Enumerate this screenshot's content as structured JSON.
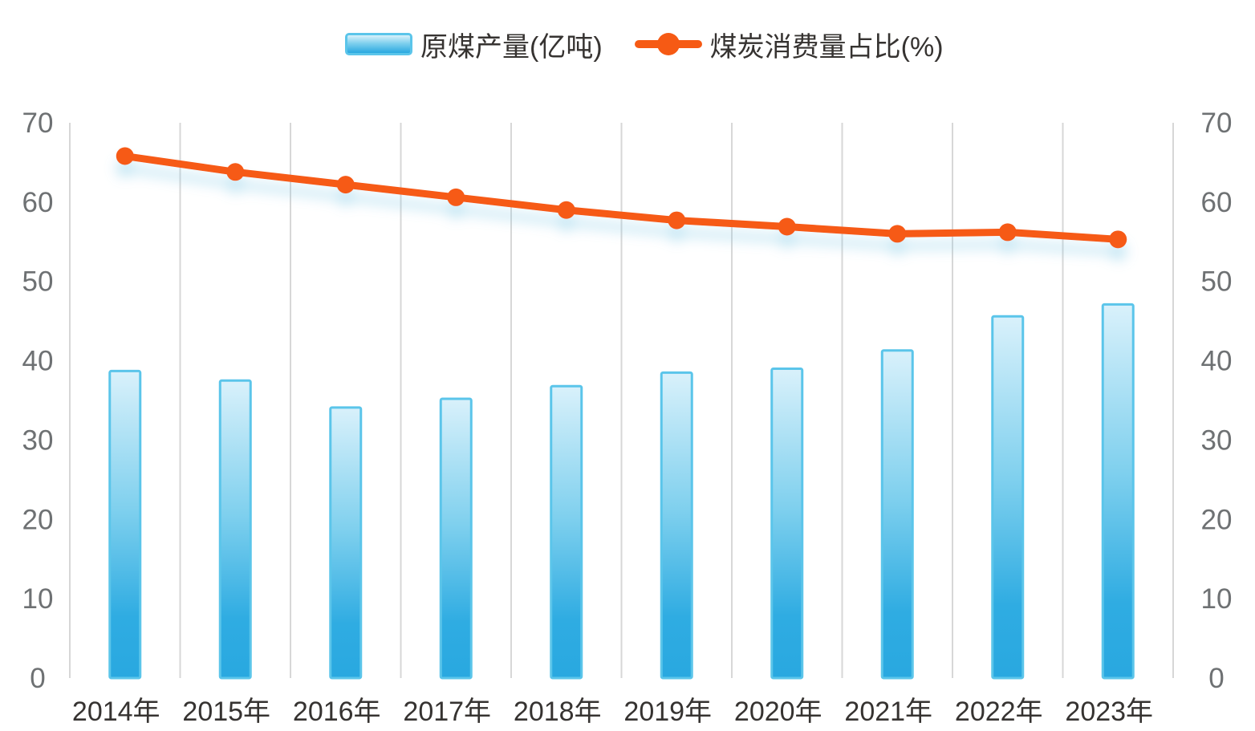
{
  "page": {
    "background": "#ffffff"
  },
  "legend": {
    "position": "top-center",
    "items": [
      {
        "label": "原煤产量(亿吨)",
        "swatch": "blue-gradient-bar"
      },
      {
        "label": "煤炭消费量占比(%)",
        "swatch": "orange-line-with-dot"
      }
    ]
  },
  "chart_data": {
    "type": "bar+line",
    "title": "",
    "xlabel": "",
    "ylabel": "",
    "categories": [
      "2014年",
      "2015年",
      "2016年",
      "2017年",
      "2018年",
      "2019年",
      "2020年",
      "2021年",
      "2022年",
      "2023年"
    ],
    "series": [
      {
        "name": "原煤产量(亿吨)",
        "type": "bar",
        "axis": "left",
        "values": [
          38.7,
          37.5,
          34.1,
          35.2,
          36.8,
          38.5,
          39.0,
          41.3,
          45.6,
          47.1
        ]
      },
      {
        "name": "煤炭消费量占比(%)",
        "type": "line",
        "axis": "right",
        "values": [
          65.8,
          63.8,
          62.2,
          60.6,
          59.0,
          57.7,
          56.9,
          56.0,
          56.2,
          55.3
        ]
      }
    ],
    "y_axis_left": {
      "ticks": [
        0,
        10,
        20,
        30,
        40,
        50,
        60,
        70
      ],
      "range": [
        0,
        70
      ]
    },
    "y_axis_right": {
      "ticks": [
        0,
        10,
        20,
        30,
        40,
        50,
        60,
        70
      ],
      "range": [
        0,
        70
      ]
    },
    "grid": {
      "vertical_lines": true,
      "horizontal_lines": false,
      "vertical_line_count": 11
    },
    "legend_position": "top"
  },
  "colors": {
    "bar_fill_top": "#d9f1fb",
    "bar_fill_mid": "#7fd0ee",
    "bar_fill_bottom": "#29a8e0",
    "bar_border": "#5bc5ea",
    "line": "#f65a14",
    "line_glow": "#7cc7e6",
    "grid_line": "#d7d7d7",
    "tick_label": "#6e7173",
    "category_label": "#363331",
    "background": "#ffffff"
  }
}
